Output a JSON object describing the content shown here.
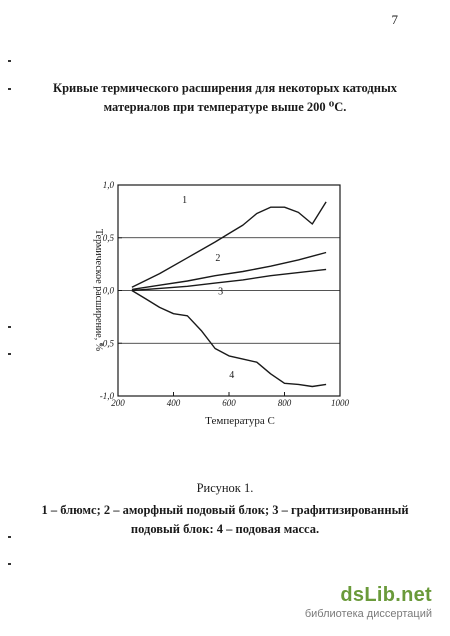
{
  "page_number": "7",
  "title": {
    "line1": "Кривые термического расширения для некоторых катодных",
    "line2": "материалов при температуре выше 200 ⁰С."
  },
  "chart_data": {
    "type": "line",
    "xlabel": "Температура С",
    "ylabel": "Термическое расширение, %",
    "xlim": [
      200,
      1000
    ],
    "ylim": [
      -1.0,
      1.0
    ],
    "x_ticks": [
      "200",
      "400",
      "600",
      "800",
      "1000"
    ],
    "y_ticks": [
      "1,0",
      "0,5",
      "0,0",
      "-0,5",
      "-1,0"
    ],
    "grid": "horizontal at 0.5, 0.0 and -0.5",
    "series": [
      {
        "name": "1",
        "x": [
          250,
          350,
          450,
          550,
          600,
          650,
          700,
          750,
          800,
          850,
          900,
          950
        ],
        "y": [
          0.03,
          0.16,
          0.31,
          0.46,
          0.54,
          0.62,
          0.73,
          0.79,
          0.79,
          0.74,
          0.63,
          0.84
        ],
        "label_at": [
          440,
          0.83
        ]
      },
      {
        "name": "2",
        "x": [
          250,
          350,
          450,
          550,
          650,
          750,
          850,
          950
        ],
        "y": [
          0.01,
          0.05,
          0.09,
          0.14,
          0.18,
          0.23,
          0.29,
          0.36
        ],
        "label_at": [
          560,
          0.28
        ]
      },
      {
        "name": "3",
        "x": [
          250,
          350,
          450,
          550,
          650,
          750,
          850,
          950
        ],
        "y": [
          0.0,
          0.02,
          0.04,
          0.07,
          0.1,
          0.14,
          0.17,
          0.2
        ],
        "label_at": [
          570,
          -0.04
        ]
      },
      {
        "name": "4",
        "x": [
          250,
          300,
          350,
          400,
          450,
          500,
          550,
          600,
          650,
          700,
          750,
          800,
          850,
          900,
          950
        ],
        "y": [
          0.0,
          -0.08,
          -0.16,
          -0.22,
          -0.24,
          -0.38,
          -0.55,
          -0.62,
          -0.65,
          -0.68,
          -0.79,
          -0.88,
          -0.89,
          -0.91,
          -0.89
        ],
        "label_at": [
          610,
          -0.83
        ]
      }
    ]
  },
  "caption": {
    "figure": "Рисунок 1.",
    "line1": "1 – блюмс; 2 – аморфный подовый блок; 3 – графитизированный",
    "line2": "подовый блок: 4 – подовая масса."
  },
  "watermark": {
    "logo": "dsLib.net",
    "subtitle": "библиотека диссертаций"
  },
  "colors": {
    "ink": "#1a1a1a",
    "paper": "#ffffff",
    "watermark_green": "#6a9a3a"
  }
}
